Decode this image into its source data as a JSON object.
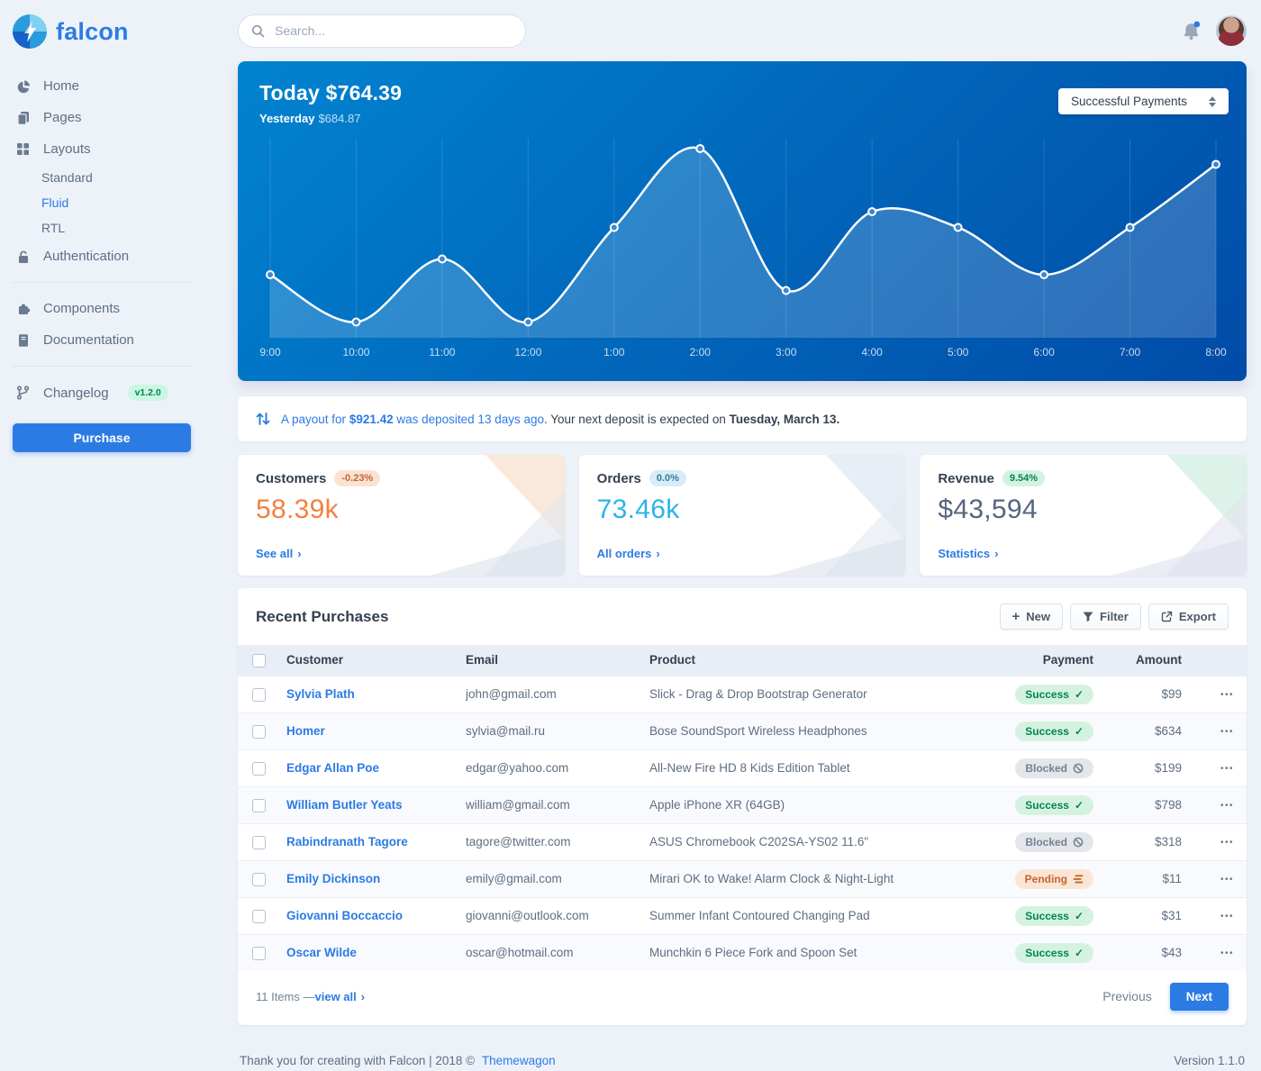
{
  "brand": {
    "name": "falcon"
  },
  "topbar": {
    "search_placeholder": "Search..."
  },
  "sidebar": {
    "items": [
      {
        "label": "Home",
        "icon": "chart-pie-icon"
      },
      {
        "label": "Pages",
        "icon": "pages-icon"
      },
      {
        "label": "Layouts",
        "icon": "grid-icon",
        "children": [
          "Standard",
          "Fluid",
          "RTL"
        ],
        "active_child": "Fluid"
      },
      {
        "label": "Authentication",
        "icon": "lock-icon"
      },
      {
        "label": "Components",
        "icon": "puzzle-icon"
      },
      {
        "label": "Documentation",
        "icon": "book-icon"
      },
      {
        "label": "Changelog",
        "icon": "code-branch-icon",
        "badge": "v1.2.0"
      }
    ],
    "purchase_label": "Purchase"
  },
  "chart_card": {
    "today_label": "Today $764.39",
    "yesterday_label": "Yesterday",
    "yesterday_value": "$684.87",
    "select_value": "Successful Payments"
  },
  "chart_data": {
    "type": "line",
    "title": "Today $764.39",
    "subtitle": "Yesterday $684.87",
    "x": [
      "9:00",
      "10:00",
      "11:00",
      "12:00",
      "1:00",
      "2:00",
      "3:00",
      "4:00",
      "5:00",
      "6:00",
      "7:00",
      "8:00"
    ],
    "values": [
      4,
      1,
      5,
      1,
      7,
      12,
      3,
      8,
      7,
      4,
      7,
      11
    ],
    "ylim": [
      0,
      14
    ],
    "grid": "vertical-only",
    "legend": "none",
    "line_color": "#ffffff",
    "area_fill": "rgba(255,255,255,0.18)",
    "background_gradient": [
      "#0183d0",
      "#014ba7"
    ]
  },
  "payout_banner": {
    "link_part_1": "A payout for",
    "amount": " $921.42",
    "link_part_2": " was deposited 13 days ago",
    "rest": ". Your next deposit is expected on",
    "date": " Tuesday, March 13."
  },
  "stats": [
    {
      "title": "Customers",
      "badge": "-0.23%",
      "value": "58.39k",
      "link": "See all"
    },
    {
      "title": "Orders",
      "badge": "0.0%",
      "value": "73.46k",
      "link": "All orders"
    },
    {
      "title": "Revenue",
      "badge": "9.54%",
      "value": "$43,594",
      "link": "Statistics"
    }
  ],
  "purchases": {
    "title": "Recent Purchases",
    "buttons": {
      "new": "New",
      "filter": "Filter",
      "export": "Export"
    },
    "columns": [
      "Customer",
      "Email",
      "Product",
      "Payment",
      "Amount"
    ],
    "rows": [
      {
        "customer": "Sylvia Plath",
        "email": "john@gmail.com",
        "product": "Slick - Drag & Drop Bootstrap Generator",
        "payment": "Success",
        "amount": "$99"
      },
      {
        "customer": "Homer",
        "email": "sylvia@mail.ru",
        "product": "Bose SoundSport Wireless Headphones",
        "payment": "Success",
        "amount": "$634"
      },
      {
        "customer": "Edgar Allan Poe",
        "email": "edgar@yahoo.com",
        "product": "All-New Fire HD 8 Kids Edition Tablet",
        "payment": "Blocked",
        "amount": "$199"
      },
      {
        "customer": "William Butler Yeats",
        "email": "william@gmail.com",
        "product": "Apple iPhone XR (64GB)",
        "payment": "Success",
        "amount": "$798"
      },
      {
        "customer": "Rabindranath Tagore",
        "email": "tagore@twitter.com",
        "product": "ASUS Chromebook C202SA-YS02 11.6\"",
        "payment": "Blocked",
        "amount": "$318"
      },
      {
        "customer": "Emily Dickinson",
        "email": "emily@gmail.com",
        "product": "Mirari OK to Wake! Alarm Clock & Night-Light",
        "payment": "Pending",
        "amount": "$11"
      },
      {
        "customer": "Giovanni Boccaccio",
        "email": "giovanni@outlook.com",
        "product": "Summer Infant Contoured Changing Pad",
        "payment": "Success",
        "amount": "$31"
      },
      {
        "customer": "Oscar Wilde",
        "email": "oscar@hotmail.com",
        "product": "Munchkin 6 Piece Fork and Spoon Set",
        "payment": "Success",
        "amount": "$43"
      }
    ],
    "footer": {
      "items_text": "11 Items — ",
      "view_all": "view all",
      "previous": "Previous",
      "next": "Next"
    }
  },
  "page_footer": {
    "left_prefix": "Thank you for creating with Falcon | 2018 ©",
    "brand_link": "Themewagon",
    "version": "Version 1.1.0"
  },
  "colors": {
    "primary": "#2c7be5",
    "customers_value": "#f5803e",
    "orders_value": "#2bb3ea",
    "revenue_value": "#56657f",
    "success_badge_bg": "#d5f2e1",
    "success_badge_text": "#00864e",
    "blocked_badge_bg": "#e3e6ea",
    "blocked_badge_text": "#748194",
    "pending_badge_bg": "#fbe5d5",
    "pending_badge_text": "#c46632",
    "chart_gradient": [
      "#0183d0",
      "#014ba7"
    ]
  }
}
